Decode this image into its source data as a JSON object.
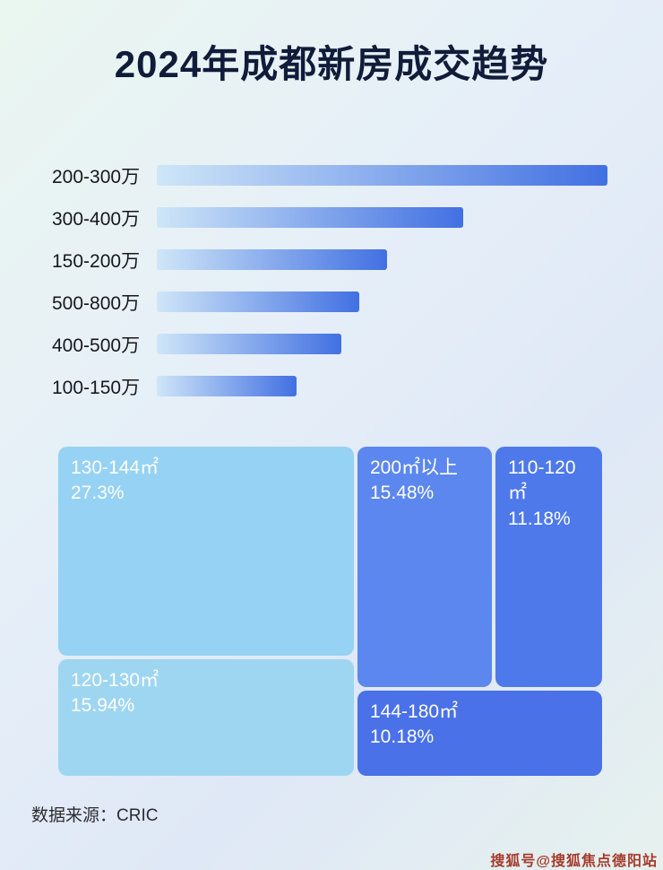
{
  "page": {
    "title": "2024年成都新房成交趋势",
    "source": "数据来源：CRIC",
    "watermark": "搜狐号@搜狐焦点德阳站"
  },
  "chart_data": [
    {
      "type": "bar",
      "orientation": "horizontal",
      "title": "2024年成都新房成交趋势",
      "categories": [
        "200-300万",
        "300-400万",
        "150-200万",
        "500-800万",
        "400-500万",
        "100-150万"
      ],
      "values": [
        100,
        68,
        51,
        45,
        41,
        31
      ],
      "value_note": "relative bar lengths (no numeric axis shown), 200-300万 = 100",
      "xlabel": "",
      "ylabel": "",
      "grid": false,
      "legend": false,
      "bar_gradient": [
        "#cfe6f8",
        "#4170e2"
      ]
    },
    {
      "type": "treemap",
      "items": [
        {
          "label": "130-144㎡",
          "value": "27.3%",
          "color": "#95d2f3"
        },
        {
          "label": "120-130㎡",
          "value": "15.94%",
          "color": "#9ed6f2"
        },
        {
          "label": "200㎡以上",
          "value": "15.48%",
          "color": "#5c87ef"
        },
        {
          "label": "110-120㎡",
          "value": "11.18%",
          "color": "#4d79ea"
        },
        {
          "label": "144-180㎡",
          "value": "10.18%",
          "color": "#4a71e8"
        }
      ]
    }
  ]
}
